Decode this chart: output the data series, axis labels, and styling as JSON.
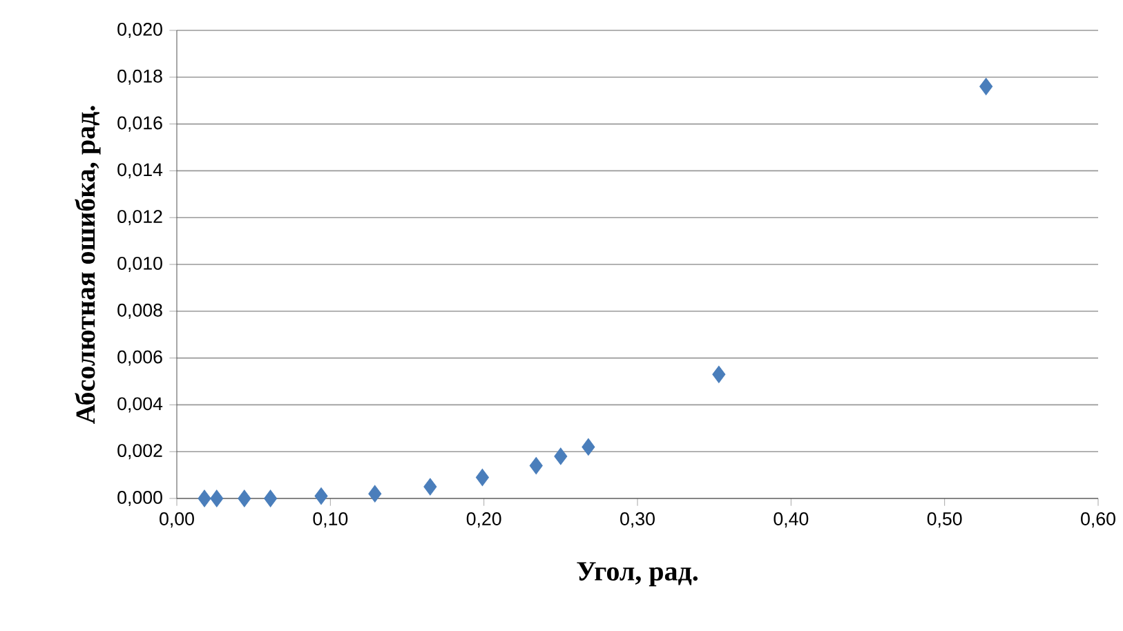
{
  "chart_data": {
    "type": "scatter",
    "xlabel": "Угол, рад.",
    "ylabel": "Абсолютная ошибка, рад.",
    "x": [
      0.018,
      0.026,
      0.044,
      0.061,
      0.094,
      0.129,
      0.165,
      0.199,
      0.234,
      0.25,
      0.268,
      0.353,
      0.527
    ],
    "series": [
      {
        "color": "#4a7ebb",
        "values": [
          0.0,
          0.0,
          0.0,
          0.0,
          0.0001,
          0.0002,
          0.0005,
          0.0009,
          0.0014,
          0.0018,
          0.0022,
          0.0053,
          0.0176
        ]
      }
    ],
    "marker": "diamond",
    "grid": "y",
    "xlim": [
      0,
      0.6
    ],
    "xticks": [
      {
        "value": 0,
        "label": "0,00"
      },
      {
        "value": 0.1,
        "label": "0,10"
      },
      {
        "value": 0.2,
        "label": "0,20"
      },
      {
        "value": 0.3,
        "label": "0,30"
      },
      {
        "value": 0.4,
        "label": "0,40"
      },
      {
        "value": 0.5,
        "label": "0,50"
      },
      {
        "value": 0.6,
        "label": "0,60"
      }
    ],
    "ylim": [
      0,
      0.02
    ],
    "yticks": [
      {
        "value": 0,
        "label": "0,000"
      },
      {
        "value": 0.002,
        "label": "0,002"
      },
      {
        "value": 0.004,
        "label": "0,004"
      },
      {
        "value": 0.006,
        "label": "0,006"
      },
      {
        "value": 0.008,
        "label": "0,008"
      },
      {
        "value": 0.01,
        "label": "0,010"
      },
      {
        "value": 0.012,
        "label": "0,012"
      },
      {
        "value": 0.014,
        "label": "0,014"
      },
      {
        "value": 0.016,
        "label": "0,016"
      },
      {
        "value": 0.018,
        "label": "0,018"
      },
      {
        "value": 0.02,
        "label": "0,020"
      }
    ]
  }
}
